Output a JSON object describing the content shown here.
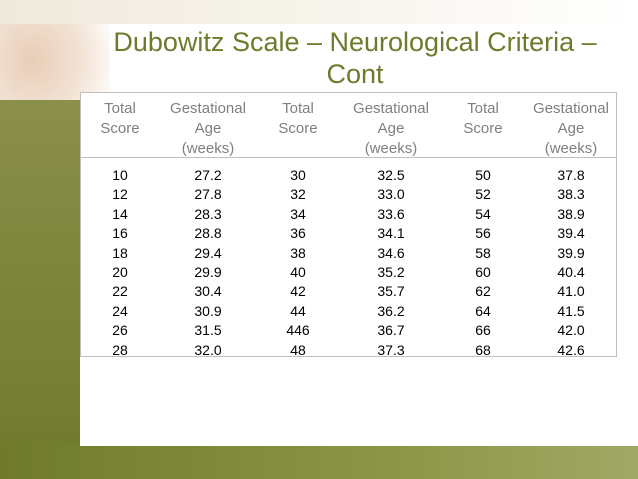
{
  "header": {
    "title": "Dubowitz Scale – Neurological Criteria – Cont"
  },
  "table": {
    "columns": [
      [
        "Total",
        "Score"
      ],
      [
        "Gestational",
        "Age",
        "(weeks)"
      ],
      [
        "Total",
        "Score"
      ],
      [
        "Gestational",
        "Age",
        "(weeks)"
      ],
      [
        "Total",
        "Score"
      ],
      [
        "Gestational",
        "Age",
        "(weeks)"
      ]
    ],
    "rows": [
      [
        "10",
        "27.2",
        "30",
        "32.5",
        "50",
        "37.8"
      ],
      [
        "12",
        "27.8",
        "32",
        "33.0",
        "52",
        "38.3"
      ],
      [
        "14",
        "28.3",
        "34",
        "33.6",
        "54",
        "38.9"
      ],
      [
        "16",
        "28.8",
        "36",
        "34.1",
        "56",
        "39.4"
      ],
      [
        "18",
        "29.4",
        "38",
        "34.6",
        "58",
        "39.9"
      ],
      [
        "20",
        "29.9",
        "40",
        "35.2",
        "60",
        "40.4"
      ],
      [
        "22",
        "30.4",
        "42",
        "35.7",
        "62",
        "41.0"
      ],
      [
        "24",
        "30.9",
        "44",
        "36.2",
        "64",
        "41.5"
      ],
      [
        "26",
        "31.5",
        "446",
        "36.7",
        "66",
        "42.0"
      ],
      [
        "28",
        "32.0",
        "48",
        "37.3",
        "68",
        "42.6"
      ]
    ]
  }
}
